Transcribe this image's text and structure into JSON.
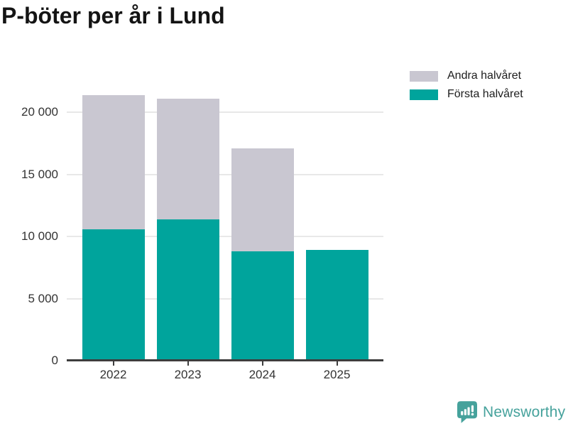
{
  "title": "P-böter per år i Lund",
  "colors": {
    "first_half": "#00A49C",
    "second_half": "#C9C7D1",
    "grid": "#E8E8E8",
    "axis": "#3D3D3D",
    "title_text": "#141414",
    "label_text": "#333333",
    "legend_text": "#1D1D1D",
    "logo_teal": "#46A29C"
  },
  "legend": {
    "items": [
      {
        "label": "Andra halvåret",
        "color_key": "second_half"
      },
      {
        "label": "Första halvåret",
        "color_key": "first_half"
      }
    ]
  },
  "chart_data": {
    "type": "bar",
    "stacked": true,
    "title": "P-böter per år i Lund",
    "xlabel": "",
    "ylabel": "",
    "categories": [
      "2022",
      "2023",
      "2024",
      "2025"
    ],
    "series": [
      {
        "name": "Första halvåret",
        "color_key": "first_half",
        "values": [
          10550,
          11400,
          8800,
          8900
        ]
      },
      {
        "name": "Andra halvåret",
        "color_key": "second_half",
        "values": [
          10800,
          9700,
          8300,
          0
        ]
      }
    ],
    "totals": [
      21350,
      21100,
      17100,
      8900
    ],
    "ylim": [
      0,
      21500
    ],
    "yticks": [
      0,
      5000,
      10000,
      15000,
      20000
    ],
    "ytick_labels": [
      "0",
      "5 000",
      "10 000",
      "15 000",
      "20 000"
    ],
    "grid": true,
    "legend_position": "top-right"
  },
  "branding": {
    "logo_text": "Newsworthy",
    "logo_icon": "bar-chart-speech-bubble-icon"
  }
}
